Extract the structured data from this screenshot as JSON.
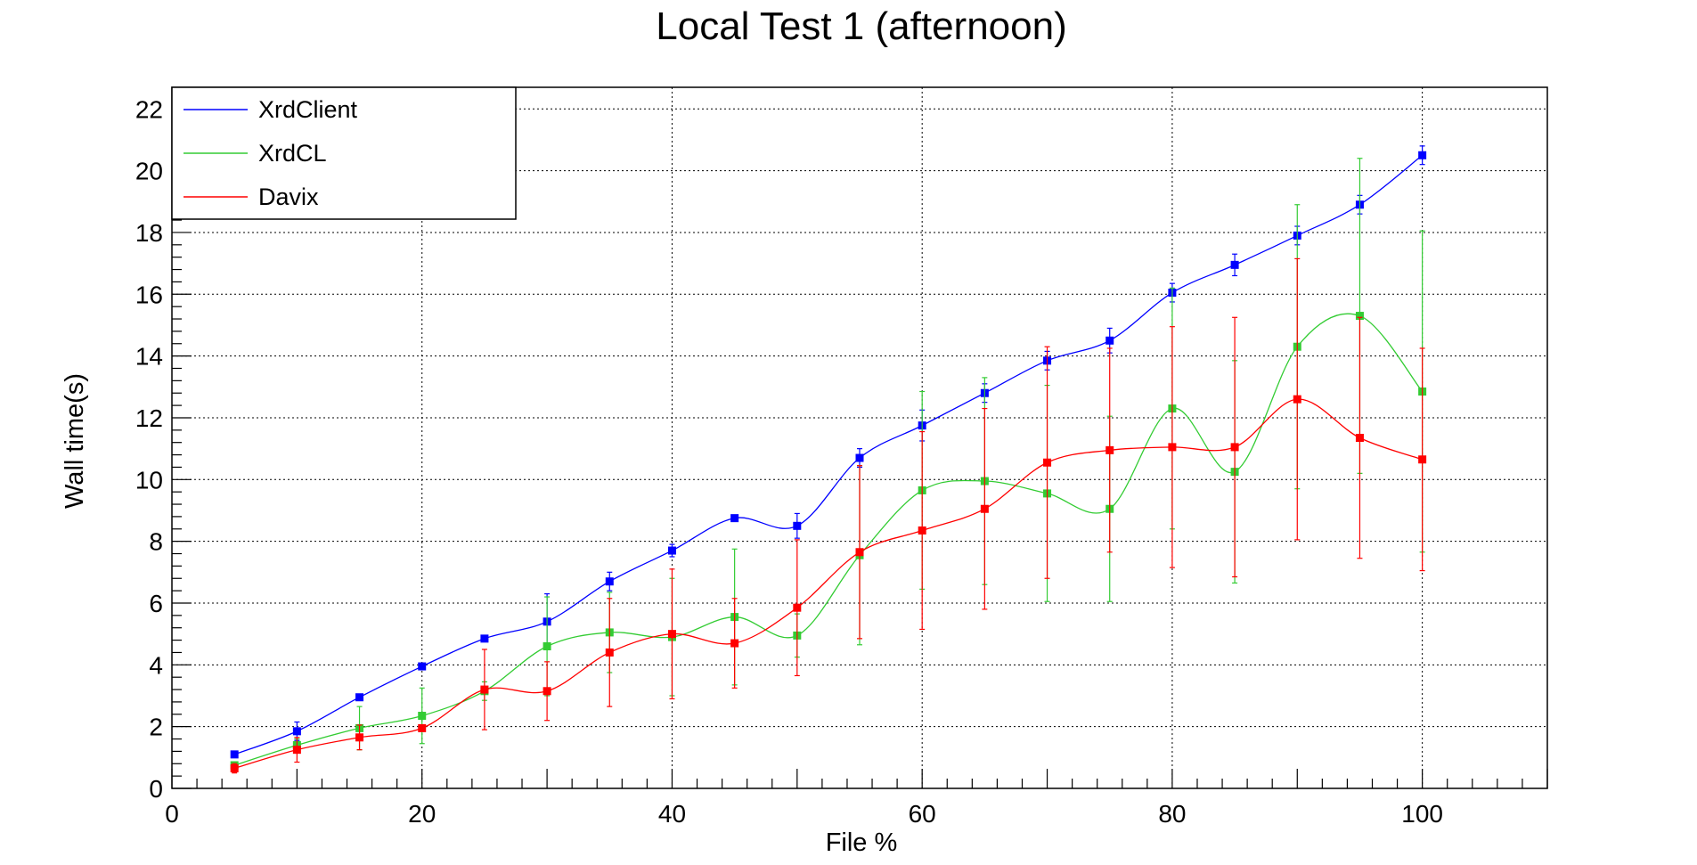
{
  "chart_data": {
    "type": "line",
    "title": "Local Test 1 (afternoon)",
    "xlabel": "File %",
    "ylabel": "Wall time(s)",
    "xlim": [
      0,
      110
    ],
    "ylim": [
      0,
      22.7
    ],
    "xticks": [
      0,
      20,
      40,
      60,
      80,
      100
    ],
    "yticks": [
      0,
      2,
      4,
      6,
      8,
      10,
      12,
      14,
      16,
      18,
      20,
      22
    ],
    "grid": true,
    "legend_position": "top-left",
    "x": [
      5,
      10,
      15,
      20,
      25,
      30,
      35,
      40,
      45,
      50,
      55,
      60,
      65,
      70,
      75,
      80,
      85,
      90,
      95,
      100
    ],
    "series": [
      {
        "name": "XrdClient",
        "color": "#0000ff",
        "values": [
          1.1,
          1.85,
          2.95,
          3.95,
          4.85,
          5.4,
          6.7,
          7.7,
          8.75,
          8.5,
          10.7,
          11.75,
          12.8,
          13.85,
          14.5,
          16.05,
          16.95,
          17.9,
          18.9,
          20.5
        ],
        "errors": [
          0.1,
          0.3,
          0.1,
          0.1,
          0.1,
          0.9,
          0.3,
          0.2,
          0.1,
          0.4,
          0.3,
          0.5,
          0.3,
          0.3,
          0.4,
          0.3,
          0.35,
          0.3,
          0.3,
          0.3
        ]
      },
      {
        "name": "XrdCL",
        "color": "#33cc33",
        "values": [
          0.75,
          1.4,
          1.95,
          2.35,
          3.15,
          4.6,
          5.05,
          4.9,
          5.55,
          4.95,
          7.55,
          9.65,
          9.95,
          9.55,
          9.05,
          12.3,
          10.25,
          14.3,
          15.3,
          12.85
        ],
        "errors": [
          0.1,
          0.2,
          0.7,
          0.9,
          0.3,
          1.6,
          1.3,
          1.9,
          2.2,
          0.7,
          2.9,
          3.2,
          3.35,
          3.5,
          3.0,
          3.9,
          3.6,
          4.6,
          5.1,
          5.2
        ]
      },
      {
        "name": "Davix",
        "color": "#ff0000",
        "values": [
          0.65,
          1.25,
          1.65,
          1.95,
          3.2,
          3.15,
          4.4,
          5.0,
          4.7,
          5.85,
          7.65,
          8.35,
          9.05,
          10.55,
          10.95,
          11.05,
          11.05,
          12.6,
          11.35,
          10.65
        ],
        "errors": [
          0.15,
          0.4,
          0.4,
          0.1,
          1.3,
          0.95,
          1.75,
          2.1,
          1.45,
          2.2,
          2.8,
          3.2,
          3.25,
          3.75,
          3.3,
          3.9,
          4.2,
          4.55,
          3.9,
          3.6
        ]
      }
    ]
  }
}
